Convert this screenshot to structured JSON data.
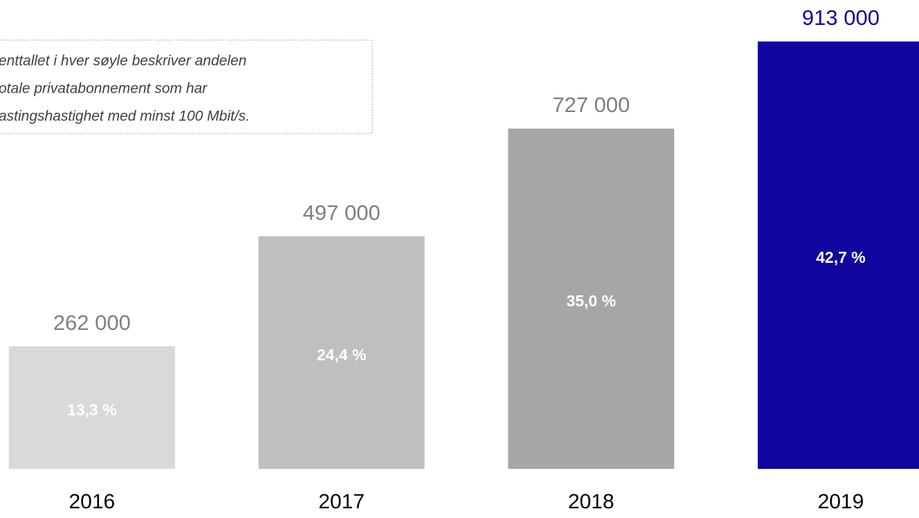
{
  "chart_data": {
    "type": "bar",
    "annotation": [
      "enttallet i hver søyle beskriver andelen",
      "otale privatabonnement som har",
      "astingshastighet med minst 100 Mbit/s."
    ],
    "categories": [
      "2016",
      "2017",
      "2018",
      "2019"
    ],
    "values": [
      262000,
      497000,
      727000,
      913000
    ],
    "value_labels": [
      "262 000",
      "497 000",
      "727 000",
      "913 000"
    ],
    "colors": [
      "#d9d9d9",
      "#bfbfbf",
      "#a6a6a6",
      "#10069f"
    ],
    "value_label_colors": [
      "#7f7f7f",
      "#7f7f7f",
      "#7f7f7f",
      "#10069f"
    ],
    "shares": [
      {
        "value": 13.3,
        "label": "13,3 %"
      },
      {
        "value": 24.4,
        "label": "24,4 %"
      },
      {
        "value": 35.0,
        "label": "35,0 %"
      },
      {
        "value": 42.7,
        "label": "42,7 %"
      }
    ],
    "ylim": [
      0,
      913000
    ]
  }
}
